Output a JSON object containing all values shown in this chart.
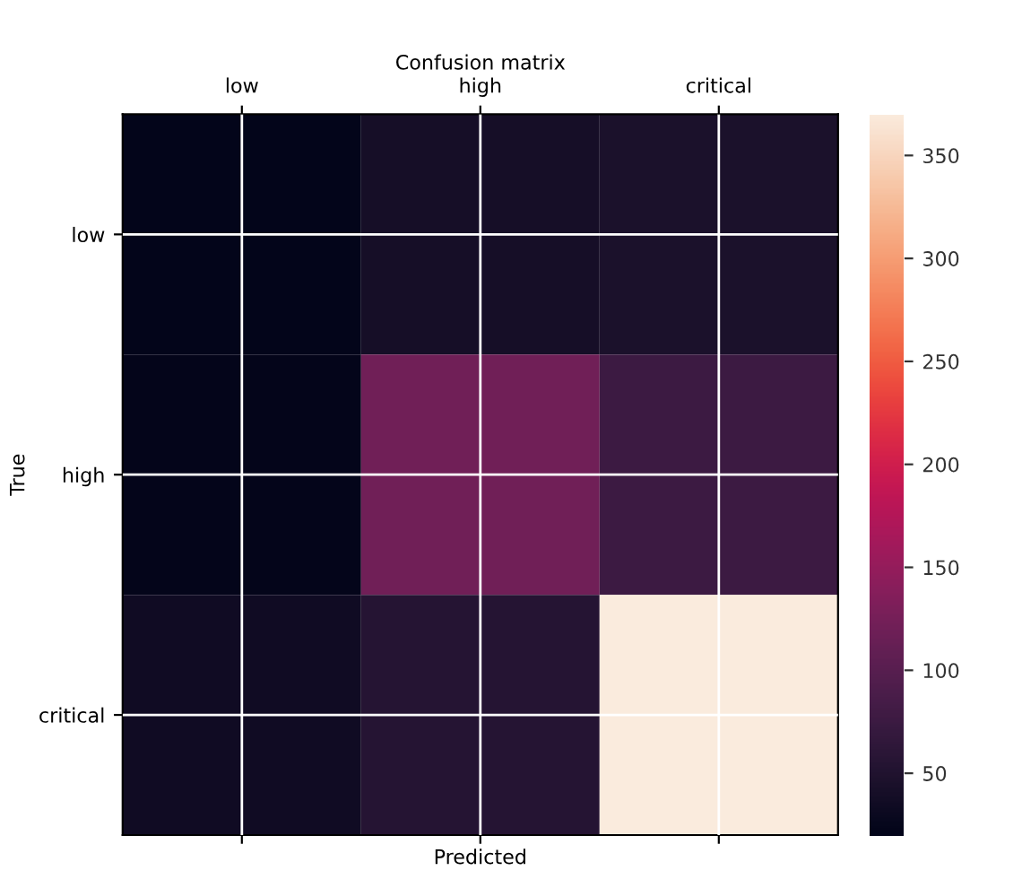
{
  "chart_data": {
    "type": "heatmap",
    "title": "Confusion matrix",
    "categories": [
      "low",
      "high",
      "critical"
    ],
    "y_categories": [
      "low",
      "high",
      "critical"
    ],
    "cells": [
      [
        20,
        40,
        45
      ],
      [
        22,
        120,
        75
      ],
      [
        35,
        55,
        370
      ]
    ],
    "xlabel": "Predicted",
    "ylabel": "True",
    "clim": [
      20,
      370
    ],
    "cticks": [
      50,
      100,
      150,
      200,
      250,
      300,
      350
    ],
    "grid": true
  }
}
